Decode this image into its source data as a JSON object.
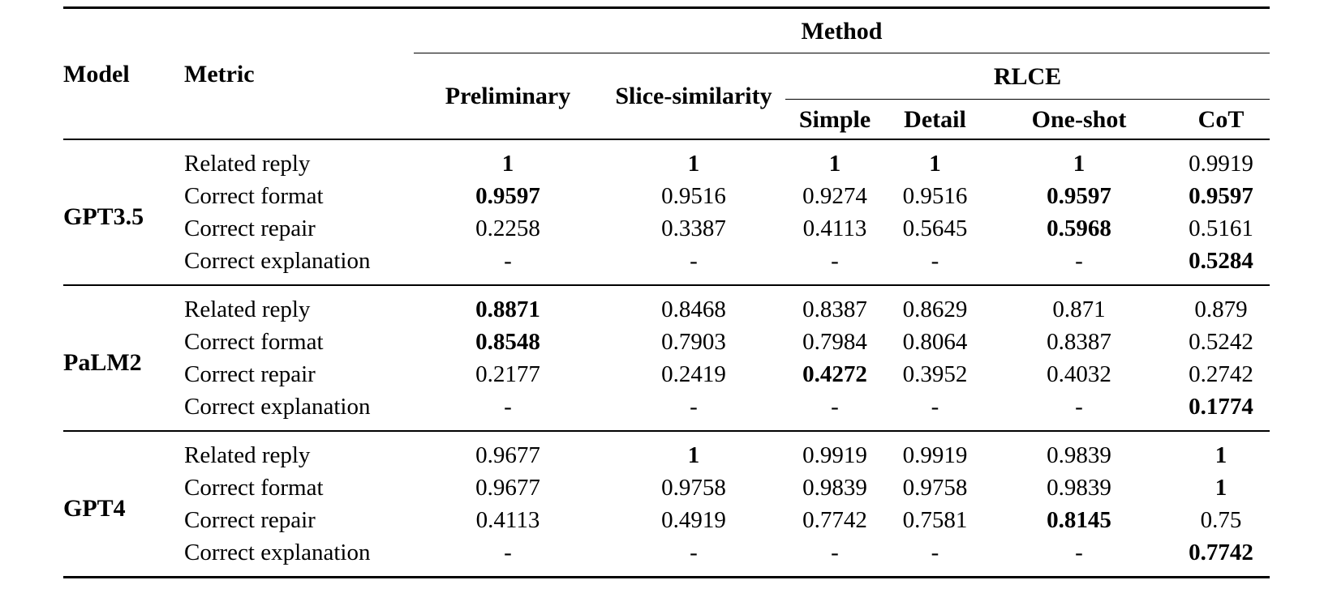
{
  "page": {
    "background_color": "#ffffff",
    "text_color": "#000000",
    "rule_color": "#000000"
  },
  "table": {
    "header": {
      "model": "Model",
      "metric": "Metric",
      "method": "Method",
      "preliminary": "Preliminary",
      "slice_similarity": "Slice-similarity",
      "rlce": "RLCE",
      "simple": "Simple",
      "detail": "Detail",
      "one_shot": "One-shot",
      "cot": "CoT"
    },
    "groups": [
      {
        "model": "GPT3.5",
        "rows": [
          {
            "metric": "Related reply",
            "values": [
              "1",
              "1",
              "1",
              "1",
              "1",
              "0.9919"
            ],
            "bold": [
              true,
              true,
              true,
              true,
              true,
              false
            ]
          },
          {
            "metric": "Correct format",
            "values": [
              "0.9597",
              "0.9516",
              "0.9274",
              "0.9516",
              "0.9597",
              "0.9597"
            ],
            "bold": [
              true,
              false,
              false,
              false,
              true,
              true
            ]
          },
          {
            "metric": "Correct repair",
            "values": [
              "0.2258",
              "0.3387",
              "0.4113",
              "0.5645",
              "0.5968",
              "0.5161"
            ],
            "bold": [
              false,
              false,
              false,
              false,
              true,
              false
            ]
          },
          {
            "metric": "Correct explanation",
            "values": [
              "-",
              "-",
              "-",
              "-",
              "-",
              "0.5284"
            ],
            "bold": [
              false,
              false,
              false,
              false,
              false,
              true
            ]
          }
        ]
      },
      {
        "model": "PaLM2",
        "rows": [
          {
            "metric": "Related reply",
            "values": [
              "0.8871",
              "0.8468",
              "0.8387",
              "0.8629",
              "0.871",
              "0.879"
            ],
            "bold": [
              true,
              false,
              false,
              false,
              false,
              false
            ]
          },
          {
            "metric": "Correct format",
            "values": [
              "0.8548",
              "0.7903",
              "0.7984",
              "0.8064",
              "0.8387",
              "0.5242"
            ],
            "bold": [
              true,
              false,
              false,
              false,
              false,
              false
            ]
          },
          {
            "metric": "Correct repair",
            "values": [
              "0.2177",
              "0.2419",
              "0.4272",
              "0.3952",
              "0.4032",
              "0.2742"
            ],
            "bold": [
              false,
              false,
              true,
              false,
              false,
              false
            ]
          },
          {
            "metric": "Correct explanation",
            "values": [
              "-",
              "-",
              "-",
              "-",
              "-",
              "0.1774"
            ],
            "bold": [
              false,
              false,
              false,
              false,
              false,
              true
            ]
          }
        ]
      },
      {
        "model": "GPT4",
        "rows": [
          {
            "metric": "Related reply",
            "values": [
              "0.9677",
              "1",
              "0.9919",
              "0.9919",
              "0.9839",
              "1"
            ],
            "bold": [
              false,
              true,
              false,
              false,
              false,
              true
            ]
          },
          {
            "metric": "Correct format",
            "values": [
              "0.9677",
              "0.9758",
              "0.9839",
              "0.9758",
              "0.9839",
              "1"
            ],
            "bold": [
              false,
              false,
              false,
              false,
              false,
              true
            ]
          },
          {
            "metric": "Correct repair",
            "values": [
              "0.4113",
              "0.4919",
              "0.7742",
              "0.7581",
              "0.8145",
              "0.75"
            ],
            "bold": [
              false,
              false,
              false,
              false,
              true,
              false
            ]
          },
          {
            "metric": "Correct explanation",
            "values": [
              "-",
              "-",
              "-",
              "-",
              "-",
              "0.7742"
            ],
            "bold": [
              false,
              false,
              false,
              false,
              false,
              true
            ]
          }
        ]
      }
    ]
  }
}
